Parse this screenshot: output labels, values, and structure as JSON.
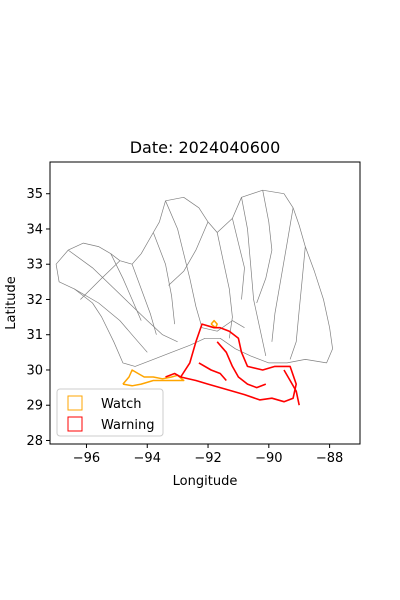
{
  "title": "Date: 2024040600",
  "axes": {
    "xlabel": "Longitude",
    "ylabel": "Latitude",
    "xlim": [
      -97.2,
      -87.0
    ],
    "ylim": [
      27.9,
      35.9
    ],
    "xticks": [
      -96,
      -94,
      -92,
      -90,
      -88
    ],
    "yticks": [
      28,
      29,
      30,
      31,
      32,
      33,
      34,
      35
    ],
    "xtick_labels": [
      "−96",
      "−94",
      "−92",
      "−90",
      "−88"
    ],
    "ytick_labels": [
      "28",
      "29",
      "30",
      "31",
      "32",
      "33",
      "34",
      "35"
    ]
  },
  "legend": {
    "placement": "lower-left",
    "items": [
      {
        "label": "Watch",
        "color": "#ffa500"
      },
      {
        "label": "Warning",
        "color": "#ff0000"
      }
    ]
  },
  "colors": {
    "basin_outline": "#808080",
    "watch": "#ffa500",
    "warning": "#ff0000"
  },
  "chart_data": {
    "type": "map",
    "basin_outlines": [
      [
        [
          -96.6,
          33.4
        ],
        [
          -96.1,
          33.6
        ],
        [
          -95.6,
          33.5
        ],
        [
          -95.2,
          33.3
        ],
        [
          -94.9,
          33.1
        ],
        [
          -94.5,
          33.0
        ],
        [
          -94.2,
          33.3
        ],
        [
          -93.8,
          33.9
        ],
        [
          -93.6,
          34.2
        ],
        [
          -93.4,
          34.8
        ],
        [
          -92.8,
          34.9
        ],
        [
          -92.3,
          34.6
        ],
        [
          -92.0,
          34.2
        ],
        [
          -91.7,
          33.9
        ],
        [
          -91.2,
          34.3
        ],
        [
          -90.9,
          34.9
        ],
        [
          -90.2,
          35.1
        ],
        [
          -89.5,
          35.0
        ],
        [
          -89.2,
          34.6
        ],
        [
          -89.0,
          34.1
        ],
        [
          -88.8,
          33.5
        ],
        [
          -88.5,
          32.8
        ],
        [
          -88.2,
          32.0
        ],
        [
          -88.0,
          31.2
        ],
        [
          -87.9,
          30.6
        ],
        [
          -88.1,
          30.2
        ],
        [
          -88.8,
          30.3
        ],
        [
          -89.4,
          30.2
        ],
        [
          -90.0,
          30.2
        ],
        [
          -90.6,
          30.4
        ],
        [
          -91.1,
          30.6
        ],
        [
          -91.6,
          30.9
        ],
        [
          -92.1,
          30.9
        ],
        [
          -92.6,
          30.7
        ],
        [
          -93.2,
          30.5
        ],
        [
          -93.8,
          30.3
        ],
        [
          -94.4,
          30.1
        ],
        [
          -94.8,
          30.2
        ],
        [
          -95.1,
          30.8
        ],
        [
          -95.5,
          31.5
        ],
        [
          -95.8,
          31.9
        ],
        [
          -96.4,
          32.3
        ],
        [
          -96.9,
          32.5
        ],
        [
          -97.0,
          33.0
        ],
        [
          -96.6,
          33.4
        ]
      ],
      [
        [
          -93.4,
          34.8
        ],
        [
          -93.0,
          34.0
        ],
        [
          -92.8,
          33.3
        ],
        [
          -92.6,
          32.6
        ],
        [
          -92.4,
          31.8
        ],
        [
          -92.2,
          31.2
        ]
      ],
      [
        [
          -91.7,
          33.9
        ],
        [
          -91.5,
          33.1
        ],
        [
          -91.3,
          32.3
        ],
        [
          -91.2,
          31.5
        ],
        [
          -91.3,
          30.9
        ]
      ],
      [
        [
          -90.9,
          34.9
        ],
        [
          -90.7,
          34.0
        ],
        [
          -90.6,
          33.0
        ],
        [
          -90.5,
          32.0
        ],
        [
          -90.3,
          31.2
        ],
        [
          -90.1,
          30.4
        ]
      ],
      [
        [
          -89.2,
          34.6
        ],
        [
          -89.4,
          33.6
        ],
        [
          -89.6,
          32.6
        ],
        [
          -89.8,
          31.6
        ],
        [
          -89.9,
          30.8
        ]
      ],
      [
        [
          -88.8,
          33.5
        ],
        [
          -88.9,
          32.6
        ],
        [
          -89.0,
          31.7
        ],
        [
          -89.1,
          30.8
        ],
        [
          -89.3,
          30.3
        ]
      ],
      [
        [
          -96.6,
          33.4
        ],
        [
          -95.8,
          32.9
        ],
        [
          -95.2,
          32.4
        ],
        [
          -94.6,
          31.9
        ],
        [
          -94.0,
          31.4
        ],
        [
          -93.5,
          31.0
        ],
        [
          -93.0,
          30.8
        ]
      ],
      [
        [
          -96.4,
          32.3
        ],
        [
          -95.6,
          31.9
        ],
        [
          -94.9,
          31.4
        ],
        [
          -94.4,
          30.9
        ],
        [
          -94.0,
          30.5
        ]
      ],
      [
        [
          -94.5,
          33.0
        ],
        [
          -94.2,
          32.3
        ],
        [
          -93.9,
          31.6
        ],
        [
          -93.7,
          31.0
        ]
      ],
      [
        [
          -93.8,
          33.9
        ],
        [
          -93.4,
          33.0
        ],
        [
          -93.2,
          32.1
        ],
        [
          -93.1,
          31.3
        ]
      ],
      [
        [
          -95.2,
          33.3
        ],
        [
          -94.8,
          32.6
        ],
        [
          -94.5,
          32.0
        ],
        [
          -94.2,
          31.4
        ]
      ],
      [
        [
          -92.0,
          34.2
        ],
        [
          -92.4,
          33.4
        ],
        [
          -92.8,
          32.8
        ],
        [
          -93.3,
          32.4
        ]
      ],
      [
        [
          -91.2,
          34.3
        ],
        [
          -91.0,
          33.6
        ],
        [
          -90.8,
          32.9
        ],
        [
          -90.9,
          32.0
        ]
      ],
      [
        [
          -90.2,
          35.1
        ],
        [
          -90.0,
          34.2
        ],
        [
          -89.9,
          33.4
        ],
        [
          -90.1,
          32.6
        ],
        [
          -90.4,
          31.9
        ]
      ],
      [
        [
          -92.2,
          31.2
        ],
        [
          -91.7,
          31.1
        ],
        [
          -91.2,
          31.4
        ],
        [
          -90.8,
          31.2
        ]
      ],
      [
        [
          -94.9,
          33.1
        ],
        [
          -95.5,
          32.6
        ],
        [
          -96.2,
          32.0
        ]
      ]
    ],
    "watch_areas": [
      [
        [
          -94.8,
          29.6
        ],
        [
          -94.6,
          29.8
        ],
        [
          -94.5,
          30.0
        ],
        [
          -94.3,
          29.9
        ],
        [
          -94.1,
          29.8
        ],
        [
          -93.8,
          29.8
        ],
        [
          -93.5,
          29.75
        ],
        [
          -93.2,
          29.8
        ],
        [
          -93.0,
          29.85
        ],
        [
          -92.8,
          29.7
        ],
        [
          -93.3,
          29.7
        ],
        [
          -93.8,
          29.7
        ],
        [
          -94.2,
          29.6
        ],
        [
          -94.5,
          29.55
        ],
        [
          -94.8,
          29.6
        ]
      ],
      [
        [
          -91.9,
          31.3
        ],
        [
          -91.8,
          31.4
        ],
        [
          -91.7,
          31.3
        ],
        [
          -91.75,
          31.2
        ],
        [
          -91.9,
          31.3
        ]
      ]
    ],
    "warning_areas": [
      [
        [
          -92.9,
          29.8
        ],
        [
          -92.6,
          30.2
        ],
        [
          -92.4,
          30.8
        ],
        [
          -92.2,
          31.3
        ],
        [
          -91.8,
          31.2
        ],
        [
          -91.6,
          31.2
        ],
        [
          -91.3,
          31.1
        ],
        [
          -91.0,
          30.9
        ],
        [
          -90.9,
          30.5
        ],
        [
          -90.7,
          30.1
        ],
        [
          -90.2,
          30.0
        ],
        [
          -89.8,
          30.1
        ],
        [
          -89.3,
          30.1
        ],
        [
          -89.1,
          29.6
        ],
        [
          -89.2,
          29.2
        ],
        [
          -89.5,
          29.1
        ],
        [
          -89.9,
          29.2
        ],
        [
          -90.3,
          29.15
        ],
        [
          -90.8,
          29.3
        ],
        [
          -91.2,
          29.4
        ],
        [
          -91.6,
          29.5
        ],
        [
          -92.0,
          29.6
        ],
        [
          -92.4,
          29.7
        ],
        [
          -92.9,
          29.8
        ]
      ],
      [
        [
          -91.7,
          30.8
        ],
        [
          -91.4,
          30.5
        ],
        [
          -91.2,
          30.1
        ],
        [
          -91.0,
          29.8
        ],
        [
          -90.7,
          29.6
        ],
        [
          -90.4,
          29.5
        ],
        [
          -90.1,
          29.6
        ]
      ],
      [
        [
          -92.3,
          30.2
        ],
        [
          -91.9,
          30.0
        ],
        [
          -91.6,
          29.9
        ],
        [
          -91.4,
          29.7
        ]
      ],
      [
        [
          -89.5,
          30.0
        ],
        [
          -89.3,
          29.7
        ],
        [
          -89.1,
          29.4
        ],
        [
          -89.0,
          29.0
        ]
      ],
      [
        [
          -93.4,
          29.8
        ],
        [
          -93.1,
          29.9
        ],
        [
          -92.9,
          29.8
        ]
      ]
    ]
  }
}
